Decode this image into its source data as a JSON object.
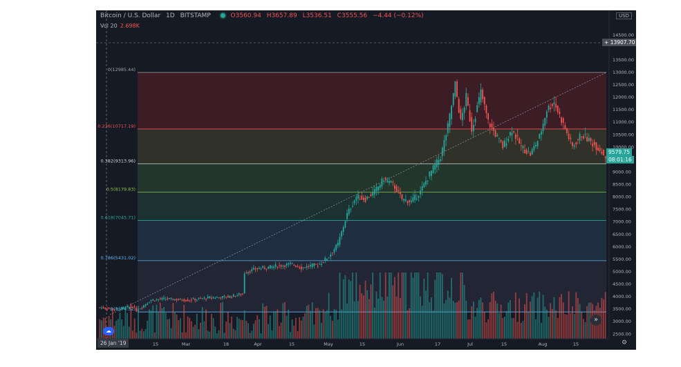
{
  "header": {
    "symbol": "Bitcoin / U.S. Dollar",
    "interval": "1D",
    "exchange": "BITSTAMP",
    "open": "O3560.94",
    "high": "H3657.89",
    "low": "L3536.51",
    "close": "C3555.56",
    "change": "−4.44 (−0.12%)",
    "volume_label": "Vol 20",
    "volume_value": "2.698K"
  },
  "currency_badge": "USD",
  "crosshair_price": "13907.70",
  "last_price": "9579.75",
  "countdown": "08:01:16",
  "crosshair_date": "26 Jan '19",
  "colors": {
    "background": "#161a25",
    "up": "#26a69a",
    "down": "#ef5350",
    "accent": "#2962ff"
  },
  "chart_data": {
    "type": "candlestick",
    "x_tick_labels": [
      "15",
      "Mar",
      "18",
      "Apr",
      "15",
      "May",
      "15",
      "Jun",
      "17",
      "Jul",
      "15",
      "Aug",
      "15"
    ],
    "y_tick_labels": [
      "2500.00",
      "3000.00",
      "3500.00",
      "4000.00",
      "4500.00",
      "5000.00",
      "5500.00",
      "6000.00",
      "6500.00",
      "7000.00",
      "7500.00",
      "8000.00",
      "8500.00",
      "9000.00",
      "10000.00",
      "10500.00",
      "11000.00",
      "11500.00",
      "12000.00",
      "12500.00",
      "13000.00",
      "13500.00",
      "14500.00"
    ],
    "ylim": [
      2300,
      15200
    ],
    "fib_levels": [
      {
        "label": "0(12985.44)",
        "value": 12985.44,
        "color": "#a0a4ad"
      },
      {
        "label": "0.236(10717.19)",
        "value": 10717.19,
        "color": "#ef5350"
      },
      {
        "label": "0.382(9313.96)",
        "value": 9313.96,
        "color": "#d1d4dc"
      },
      {
        "label": "0.5(8179.83)",
        "value": 8179.83,
        "color": "#8bc34a"
      },
      {
        "label": "0.618(7045.71)",
        "value": 7045.71,
        "color": "#26a69a"
      },
      {
        "label": "0.786(5431.02)",
        "value": 5431.02,
        "color": "#64b5f6"
      },
      {
        "label": "1(3374.32)",
        "value": 3374.32,
        "color": "#64b5f6"
      }
    ],
    "price_anchors": [
      [
        0,
        3550
      ],
      [
        10,
        3480
      ],
      [
        18,
        3600
      ],
      [
        20,
        3430
      ],
      [
        28,
        3850
      ],
      [
        35,
        3900
      ],
      [
        48,
        3850
      ],
      [
        60,
        3950
      ],
      [
        70,
        3980
      ],
      [
        78,
        4100
      ],
      [
        79,
        4950
      ],
      [
        85,
        5100
      ],
      [
        95,
        5200
      ],
      [
        105,
        5300
      ],
      [
        110,
        5150
      ],
      [
        120,
        5300
      ],
      [
        125,
        5600
      ],
      [
        130,
        6100
      ],
      [
        135,
        7300
      ],
      [
        140,
        8000
      ],
      [
        145,
        7900
      ],
      [
        150,
        8200
      ],
      [
        155,
        8700
      ],
      [
        160,
        8500
      ],
      [
        165,
        7900
      ],
      [
        170,
        7800
      ],
      [
        175,
        8200
      ],
      [
        180,
        8900
      ],
      [
        186,
        9600
      ],
      [
        190,
        10800
      ],
      [
        194,
        12500
      ],
      [
        197,
        11000
      ],
      [
        200,
        12000
      ],
      [
        203,
        10700
      ],
      [
        208,
        12200
      ],
      [
        212,
        11000
      ],
      [
        216,
        10500
      ],
      [
        220,
        10000
      ],
      [
        225,
        10700
      ],
      [
        230,
        10000
      ],
      [
        235,
        9700
      ],
      [
        240,
        10400
      ],
      [
        244,
        11500
      ],
      [
        248,
        11800
      ],
      [
        253,
        10900
      ],
      [
        258,
        10000
      ],
      [
        263,
        10500
      ],
      [
        268,
        10200
      ],
      [
        273,
        9900
      ],
      [
        276,
        9600
      ]
    ],
    "volume_scale_k": [
      0,
      30
    ]
  }
}
